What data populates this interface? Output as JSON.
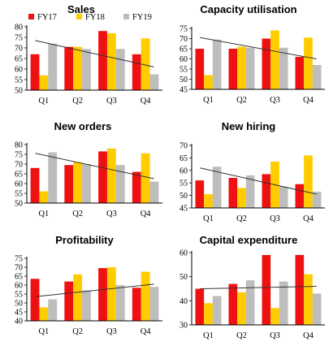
{
  "colors": {
    "FY17": "#ee1111",
    "FY18": "#ffcc00",
    "FY19": "#bdbdbd",
    "trend": "#333333"
  },
  "chart_data": [
    {
      "type": "bar",
      "title": "Sales",
      "legend_position": "top",
      "categories": [
        "Q1",
        "Q2",
        "Q3",
        "Q4"
      ],
      "series": [
        {
          "name": "FY17",
          "values": [
            67,
            70.5,
            78,
            67
          ]
        },
        {
          "name": "FY18",
          "values": [
            57,
            70.5,
            77,
            74.5
          ]
        },
        {
          "name": "FY19",
          "values": [
            72,
            69.5,
            69.5,
            57.5
          ]
        }
      ],
      "trendline": {
        "from": 73.5,
        "to": 61
      },
      "ylim": [
        50,
        80
      ],
      "yticks": [
        50,
        55,
        60,
        65,
        70,
        75,
        80
      ]
    },
    {
      "type": "bar",
      "title": "Capacity utilisation",
      "categories": [
        "Q1",
        "Q2",
        "Q3",
        "Q4"
      ],
      "series": [
        {
          "name": "FY17",
          "values": [
            65,
            65,
            70,
            61
          ]
        },
        {
          "name": "FY18",
          "values": [
            52,
            66,
            74,
            70.5
          ]
        },
        {
          "name": "FY19",
          "values": [
            69.5,
            65.5,
            65.5,
            57
          ]
        }
      ],
      "trendline": {
        "from": 70.5,
        "to": 60
      },
      "ylim": [
        45,
        75
      ],
      "yticks": [
        45,
        50,
        55,
        60,
        65,
        70,
        75
      ]
    },
    {
      "type": "bar",
      "title": "New orders",
      "categories": [
        "Q1",
        "Q2",
        "Q3",
        "Q4"
      ],
      "series": [
        {
          "name": "FY17",
          "values": [
            68,
            69.5,
            76.5,
            66
          ]
        },
        {
          "name": "FY18",
          "values": [
            56,
            71,
            78,
            75.5
          ]
        },
        {
          "name": "FY19",
          "values": [
            76,
            70,
            69.5,
            61
          ]
        }
      ],
      "trendline": {
        "from": 75.5,
        "to": 62.5
      },
      "ylim": [
        50,
        80
      ],
      "yticks": [
        50,
        55,
        60,
        65,
        70,
        75,
        80
      ]
    },
    {
      "type": "bar",
      "title": "New hiring",
      "categories": [
        "Q1",
        "Q2",
        "Q3",
        "Q4"
      ],
      "series": [
        {
          "name": "FY17",
          "values": [
            56,
            57,
            58.5,
            54.5
          ]
        },
        {
          "name": "FY18",
          "values": [
            50.5,
            53,
            63.5,
            66
          ]
        },
        {
          "name": "FY19",
          "values": [
            61.5,
            58,
            53.5,
            51.5
          ]
        }
      ],
      "trendline": {
        "from": 61,
        "to": 50.5
      },
      "ylim": [
        45,
        70
      ],
      "yticks": [
        45,
        50,
        55,
        60,
        65,
        70
      ]
    },
    {
      "type": "bar",
      "title": "Profitability",
      "categories": [
        "Q1",
        "Q2",
        "Q3",
        "Q4"
      ],
      "series": [
        {
          "name": "FY17",
          "values": [
            63.5,
            62,
            69.5,
            58.5
          ]
        },
        {
          "name": "FY18",
          "values": [
            47.5,
            66,
            70,
            67.5
          ]
        },
        {
          "name": "FY19",
          "values": [
            52,
            57,
            60,
            59
          ]
        }
      ],
      "trendline": {
        "from": 53.5,
        "to": 60.5
      },
      "ylim": [
        40,
        75
      ],
      "yticks": [
        40,
        45,
        50,
        55,
        60,
        65,
        70,
        75
      ]
    },
    {
      "type": "bar",
      "title": "Capital expenditure",
      "categories": [
        "Q1",
        "Q2",
        "Q3",
        "Q4"
      ],
      "series": [
        {
          "name": "FY17",
          "values": [
            45,
            47,
            59,
            59
          ]
        },
        {
          "name": "FY18",
          "values": [
            39,
            43.5,
            37,
            51
          ]
        },
        {
          "name": "FY19",
          "values": [
            42,
            48.5,
            48,
            43
          ]
        }
      ],
      "trendline": {
        "from": 45,
        "to": 46
      },
      "ylim": [
        30,
        60
      ],
      "yticks": [
        30,
        40,
        50,
        60
      ]
    }
  ]
}
